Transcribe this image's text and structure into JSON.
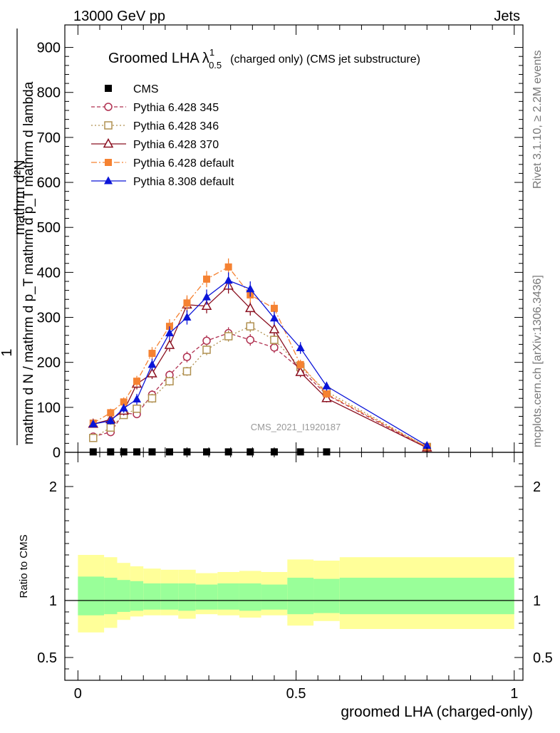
{
  "header": {
    "left": "13000 GeV pp",
    "right": "Jets"
  },
  "side_labels": {
    "rivet": "Rivet 3.1.10, ≥ 2.2M events",
    "mcplots": "mcplots.cern.ch [arXiv:1306.3436]"
  },
  "chart_data": [
    {
      "type": "line",
      "title_main": "Groomed LHA",
      "title_symbol": "λ",
      "title_sup": "1",
      "title_sub": "0.5",
      "title_rest": "(charged only) (CMS jet substructure)",
      "analysis_label": "CMS_2021_I1920187",
      "ylabel_numerator": "1",
      "ylabel_denominator": "mathrm d N / mathrm d p_T mathrm d p_T mathrm d lambda",
      "ylabel_top": "mathrm d²N",
      "xlim": [
        -0.03,
        1.02
      ],
      "ylim": [
        0,
        950
      ],
      "yticks": [
        0,
        100,
        200,
        300,
        400,
        500,
        600,
        700,
        800,
        900
      ],
      "ytick_labels": [
        "0",
        "100",
        "200",
        "300",
        "400",
        "500",
        "600",
        "700",
        "800",
        "900"
      ],
      "x": [
        0.035,
        0.075,
        0.105,
        0.135,
        0.17,
        0.21,
        0.25,
        0.295,
        0.345,
        0.395,
        0.45,
        0.51,
        0.57,
        0.8
      ],
      "series": [
        {
          "name": "CMS",
          "marker": "square-filled",
          "color": "#000000",
          "dash": "none",
          "x": [
            0.035,
            0.075,
            0.105,
            0.135,
            0.17,
            0.21,
            0.25,
            0.295,
            0.345,
            0.395,
            0.45,
            0.51,
            0.57
          ],
          "values": [
            1,
            1,
            1,
            1,
            1,
            1,
            1,
            1,
            1,
            1,
            1,
            1,
            1
          ]
        },
        {
          "name": "Pythia 6.428 345",
          "marker": "circle-open",
          "color": "#b03050",
          "dash": "5,3",
          "values": [
            35,
            45,
            87,
            85,
            128,
            172,
            212,
            248,
            265,
            250,
            233,
            185,
            128,
            10
          ],
          "errors": [
            6,
            6,
            8,
            8,
            10,
            10,
            12,
            12,
            13,
            13,
            12,
            10,
            9,
            3
          ]
        },
        {
          "name": "Pythia 6.428 346",
          "marker": "square-open",
          "color": "#b09050",
          "dash": "2,3",
          "values": [
            32,
            55,
            83,
            97,
            120,
            158,
            180,
            228,
            258,
            280,
            250,
            190,
            135,
            12
          ],
          "errors": [
            6,
            6,
            8,
            8,
            10,
            10,
            10,
            12,
            12,
            13,
            12,
            10,
            9,
            3
          ]
        },
        {
          "name": "Pythia 6.428 370",
          "marker": "triangle-open",
          "color": "#8b1020",
          "dash": "none",
          "values": [
            63,
            73,
            92,
            152,
            175,
            238,
            328,
            325,
            370,
            320,
            273,
            178,
            120,
            10
          ],
          "errors": [
            8,
            8,
            10,
            12,
            12,
            14,
            16,
            16,
            17,
            16,
            14,
            11,
            9,
            3
          ]
        },
        {
          "name": "Pythia 6.428 default",
          "marker": "square-filled",
          "color": "#f58232",
          "dash": "8,3,2,3",
          "values": [
            65,
            88,
            112,
            158,
            220,
            280,
            332,
            385,
            412,
            350,
            320,
            195,
            130,
            12
          ],
          "errors": [
            8,
            9,
            10,
            12,
            14,
            16,
            17,
            18,
            19,
            17,
            15,
            11,
            9,
            3
          ]
        },
        {
          "name": "Pythia 8.308 default",
          "marker": "triangle-filled",
          "color": "#0b15d8",
          "dash": "none",
          "values": [
            63,
            70,
            98,
            118,
            195,
            265,
            300,
            345,
            382,
            363,
            298,
            232,
            147,
            15
          ],
          "errors": [
            8,
            8,
            10,
            12,
            13,
            15,
            16,
            17,
            18,
            17,
            15,
            13,
            10,
            3
          ]
        }
      ]
    },
    {
      "type": "area",
      "ylabel": "Ratio to CMS",
      "xlabel": "groomed LHA (charged-only)",
      "xlim": [
        -0.03,
        1.02
      ],
      "ylim": [
        0.3,
        2.3
      ],
      "yticks": [
        0.5,
        1,
        2
      ],
      "ytick_labels": [
        "0.5",
        "1",
        "2"
      ],
      "xticks": [
        0,
        0.5,
        1
      ],
      "xtick_labels": [
        "0",
        "0.5",
        "1"
      ],
      "bin_edges": [
        0.0,
        0.06,
        0.09,
        0.12,
        0.15,
        0.19,
        0.23,
        0.27,
        0.32,
        0.37,
        0.42,
        0.48,
        0.54,
        0.6,
        1.0
      ],
      "band_yellow_upper": [
        1.4,
        1.38,
        1.33,
        1.3,
        1.28,
        1.27,
        1.27,
        1.24,
        1.25,
        1.26,
        1.25,
        1.36,
        1.35,
        1.38
      ],
      "band_yellow_lower": [
        0.72,
        0.76,
        0.83,
        0.86,
        0.87,
        0.87,
        0.84,
        0.88,
        0.87,
        0.85,
        0.87,
        0.78,
        0.82,
        0.75
      ],
      "band_green_upper": [
        1.21,
        1.2,
        1.18,
        1.17,
        1.15,
        1.15,
        1.15,
        1.14,
        1.15,
        1.15,
        1.14,
        1.2,
        1.19,
        1.2
      ],
      "band_green_lower": [
        0.87,
        0.88,
        0.9,
        0.91,
        0.92,
        0.92,
        0.91,
        0.92,
        0.92,
        0.91,
        0.92,
        0.88,
        0.89,
        0.88
      ],
      "colors": {
        "yellow": "#ffff99",
        "green": "#99ff99"
      }
    }
  ]
}
